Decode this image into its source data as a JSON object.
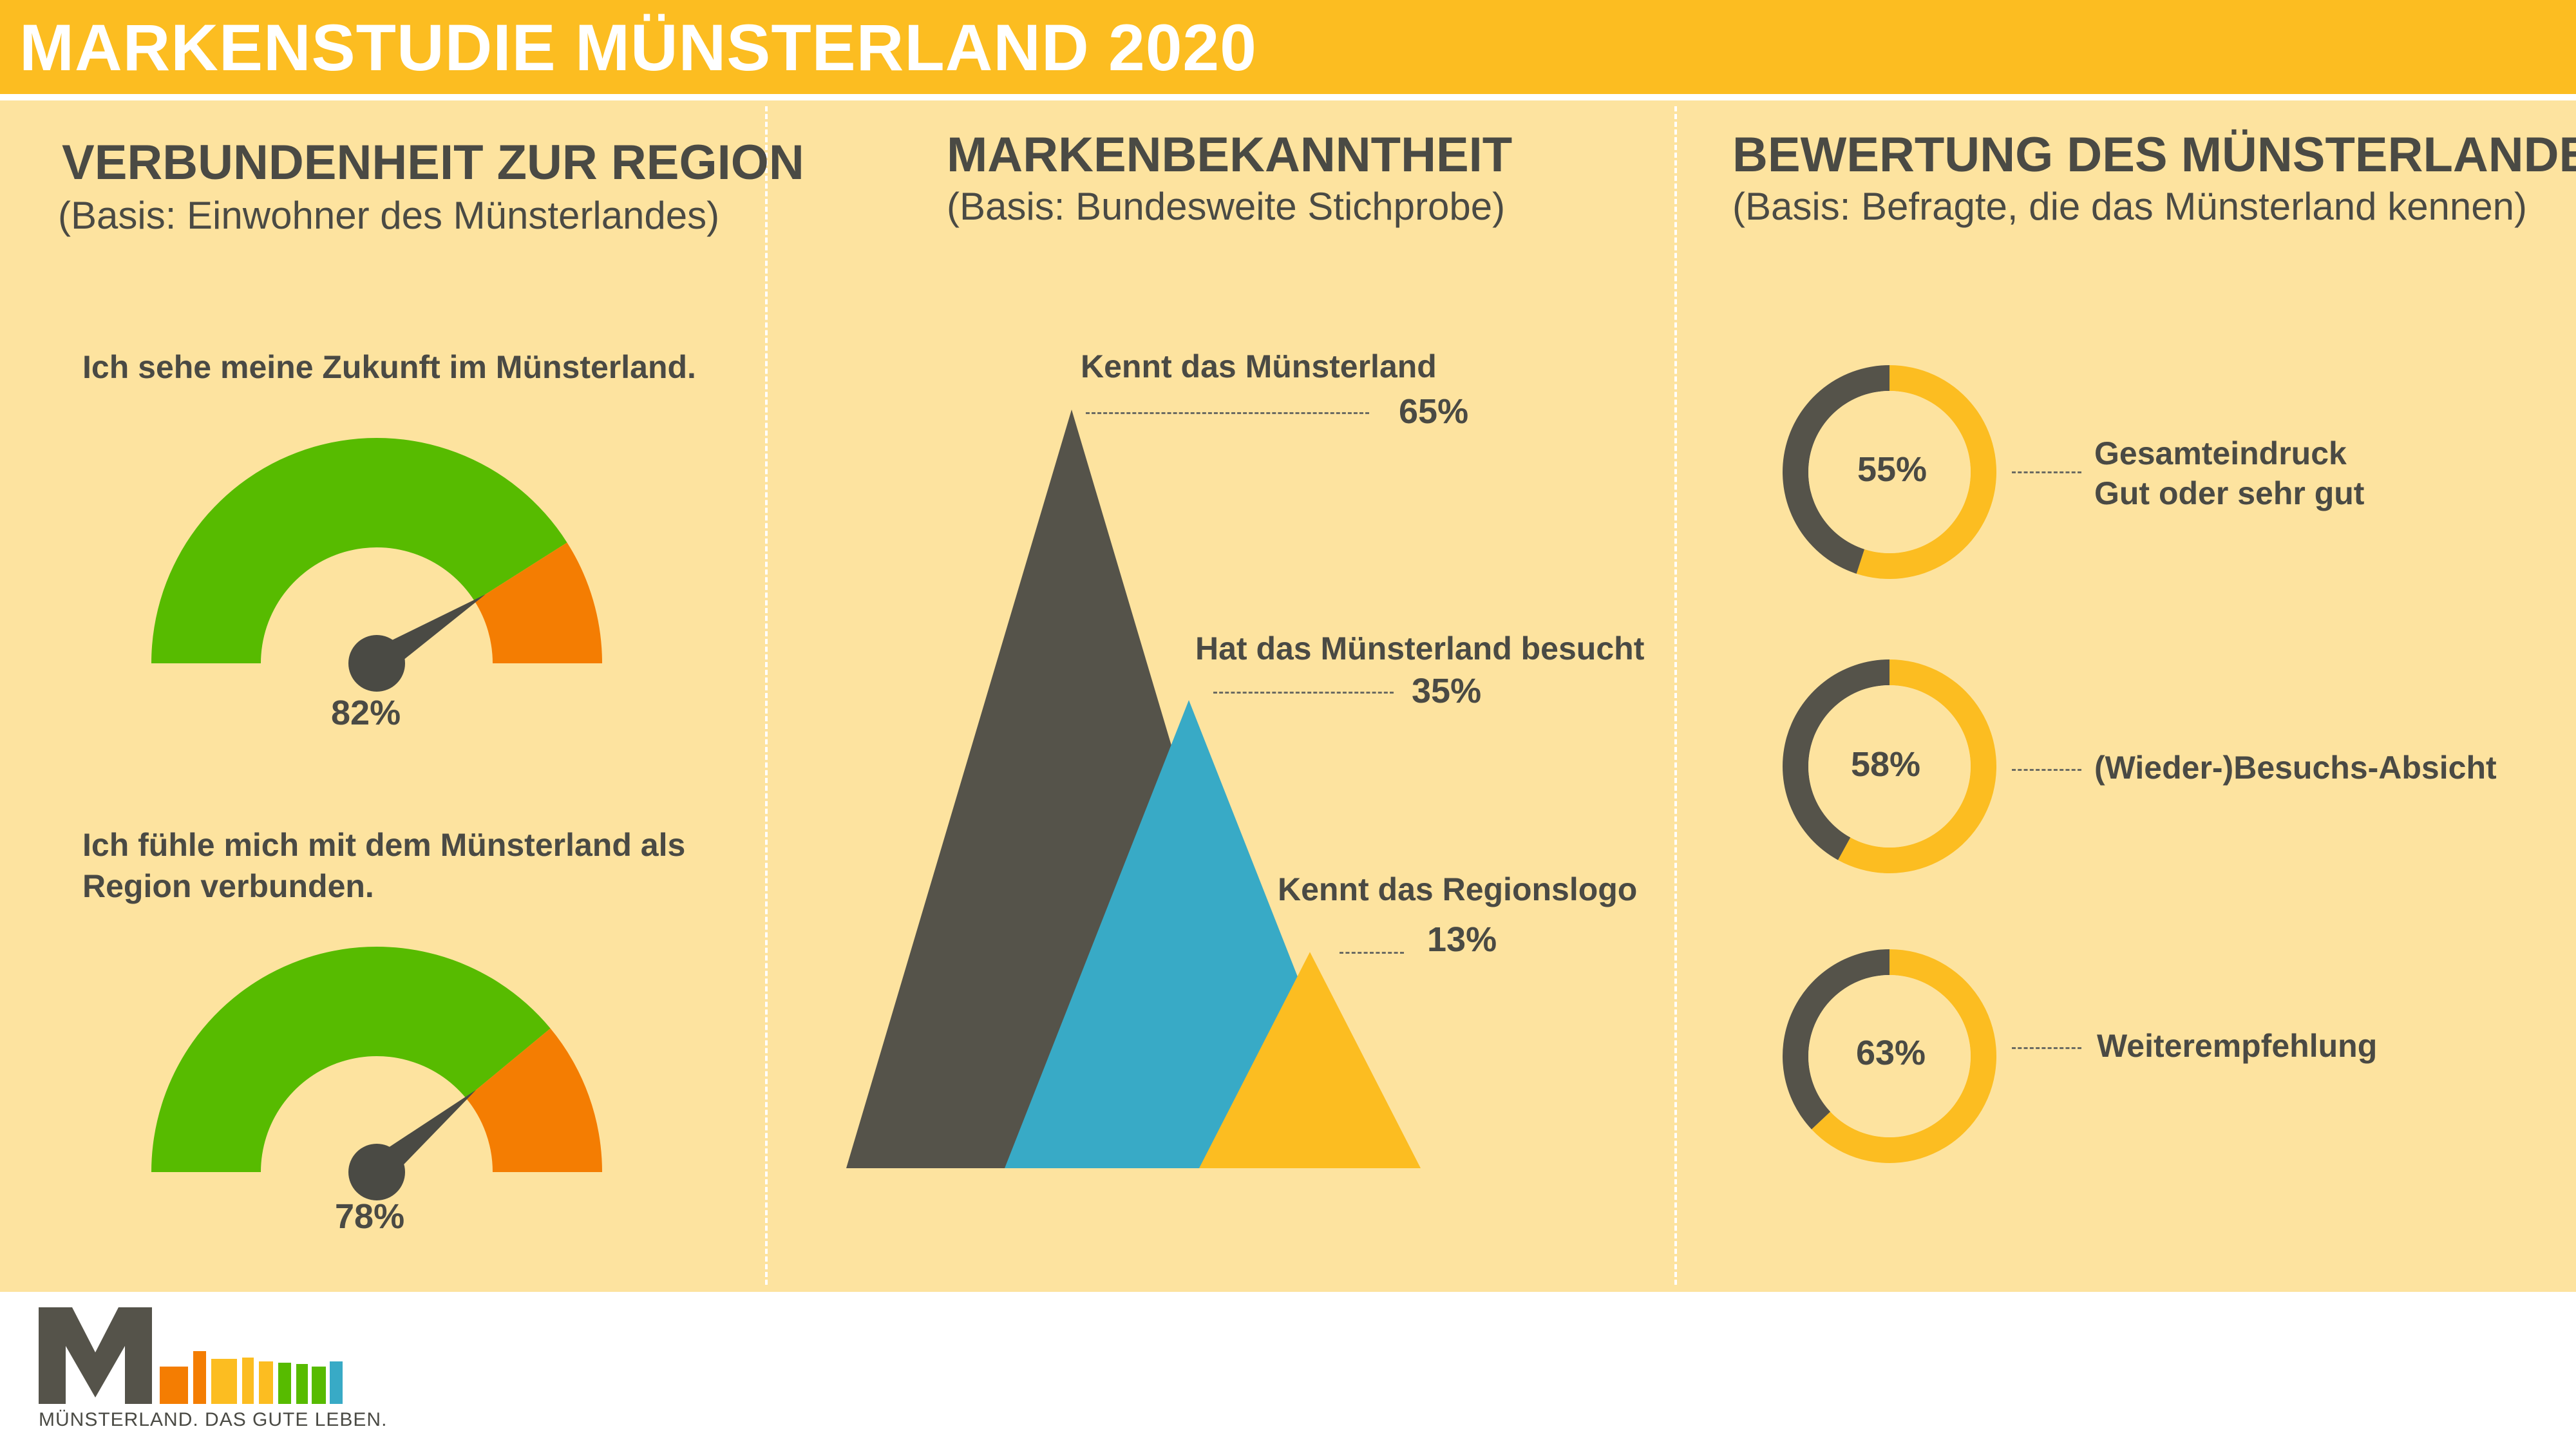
{
  "header": {
    "title": "MARKENSTUDIE MÜNSTERLAND 2020",
    "bar_color": "#fcbd21",
    "panel_color": "#fde39f"
  },
  "sections": {
    "left": {
      "title": "VERBUNDENHEIT ZUR REGION",
      "subtitle": "(Basis: Einwohner des Münsterlandes)"
    },
    "middle": {
      "title": "MARKENBEKANNTHEIT",
      "subtitle": "(Basis: Bundesweite Stichprobe)"
    },
    "right": {
      "title": "BEWERTUNG DES MÜNSTERLANDES",
      "subtitle": "(Basis: Befragte, die das Münsterland kennen)"
    }
  },
  "chart_data": [
    {
      "type": "gauge",
      "items": [
        {
          "label": "Ich sehe meine Zukunft im Münsterland.",
          "value": 82,
          "value_text": "82%"
        },
        {
          "label": "Ich fühle mich mit dem Münsterland als Region verbunden.",
          "value": 78,
          "value_text": "78%"
        }
      ],
      "colors": {
        "agree": "#57bb00",
        "disagree": "#f47d02",
        "needle": "#4a4a44"
      }
    },
    {
      "type": "area",
      "shape": "triangles",
      "items": [
        {
          "label": "Kennt das Münsterland",
          "value": 65,
          "value_text": "65%",
          "color": "#55534a"
        },
        {
          "label": "Hat das Münsterland besucht",
          "value": 35,
          "value_text": "35%",
          "color": "#38aac6"
        },
        {
          "label": "Kennt das Regionslogo",
          "value": 13,
          "value_text": "13%",
          "color": "#fcbd21"
        }
      ]
    },
    {
      "type": "pie",
      "shape": "donut",
      "items": [
        {
          "label_lines": [
            "Gesamteindruck",
            "Gut oder sehr gut"
          ],
          "value": 55,
          "value_text": "55%"
        },
        {
          "label_lines": [
            "(Wieder-)Besuchs-Absicht"
          ],
          "value": 58,
          "value_text": "58%"
        },
        {
          "label_lines": [
            "Weiterempfehlung"
          ],
          "value": 63,
          "value_text": "63%"
        }
      ],
      "colors": {
        "share": "#fcbd21",
        "rest": "#55534a",
        "center": "#fde39f"
      }
    }
  ],
  "footer": {
    "tagline": "MÜNSTERLAND. DAS GUTE LEBEN.",
    "logo_colors": [
      "#55534a",
      "#f47d02",
      "#fcbd21",
      "#57bb00",
      "#38aac6"
    ]
  }
}
